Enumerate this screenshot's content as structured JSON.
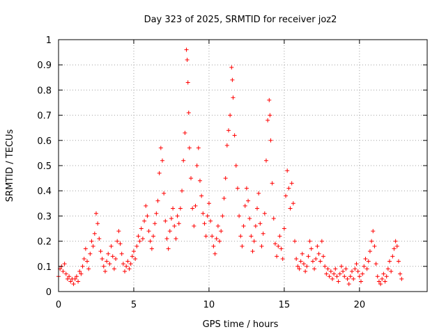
{
  "chart_data": {
    "type": "scatter",
    "title": "Day 323 of 2025, SRMTID for receiver joz2",
    "xlabel": "GPS time / hours",
    "ylabel": "SRMTID / TECUs",
    "xlim": [
      0,
      24.5
    ],
    "ylim": [
      0,
      1
    ],
    "xticks": [
      0,
      5,
      10,
      15,
      20
    ],
    "xtick_labels": [
      "0",
      "5",
      "10",
      "15",
      "20"
    ],
    "yticks": [
      0,
      0.1,
      0.2,
      0.3,
      0.4,
      0.5,
      0.6,
      0.7,
      0.8,
      0.9,
      1
    ],
    "ytick_labels": [
      "0",
      "0.1",
      "0.2",
      "0.3",
      "0.4",
      "0.5",
      "0.6",
      "0.7",
      "0.8",
      "0.9",
      "1"
    ],
    "grid": true,
    "marker": "+",
    "marker_color": "#ff0000",
    "series": [
      {
        "name": "SRMTID",
        "points": [
          [
            0.0,
            0.06
          ],
          [
            0.1,
            0.09
          ],
          [
            0.2,
            0.1
          ],
          [
            0.3,
            0.08
          ],
          [
            0.4,
            0.11
          ],
          [
            0.5,
            0.07
          ],
          [
            0.6,
            0.05
          ],
          [
            0.7,
            0.06
          ],
          [
            0.8,
            0.04
          ],
          [
            0.9,
            0.05
          ],
          [
            1.0,
            0.03
          ],
          [
            1.1,
            0.05
          ],
          [
            1.2,
            0.06
          ],
          [
            1.3,
            0.04
          ],
          [
            1.4,
            0.08
          ],
          [
            1.5,
            0.07
          ],
          [
            1.6,
            0.1
          ],
          [
            1.7,
            0.13
          ],
          [
            1.8,
            0.17
          ],
          [
            1.9,
            0.12
          ],
          [
            2.0,
            0.09
          ],
          [
            2.1,
            0.15
          ],
          [
            2.2,
            0.2
          ],
          [
            2.3,
            0.18
          ],
          [
            2.4,
            0.23
          ],
          [
            2.5,
            0.31
          ],
          [
            2.6,
            0.27
          ],
          [
            2.7,
            0.21
          ],
          [
            2.8,
            0.16
          ],
          [
            2.9,
            0.13
          ],
          [
            3.0,
            0.1
          ],
          [
            3.1,
            0.08
          ],
          [
            3.2,
            0.12
          ],
          [
            3.3,
            0.15
          ],
          [
            3.4,
            0.11
          ],
          [
            3.5,
            0.18
          ],
          [
            3.6,
            0.14
          ],
          [
            3.7,
            0.09
          ],
          [
            3.8,
            0.13
          ],
          [
            3.9,
            0.2
          ],
          [
            4.0,
            0.24
          ],
          [
            4.1,
            0.19
          ],
          [
            4.2,
            0.15
          ],
          [
            4.3,
            0.11
          ],
          [
            4.4,
            0.08
          ],
          [
            4.5,
            0.1
          ],
          [
            4.6,
            0.12
          ],
          [
            4.7,
            0.09
          ],
          [
            4.8,
            0.11
          ],
          [
            4.9,
            0.14
          ],
          [
            5.0,
            0.16
          ],
          [
            5.1,
            0.13
          ],
          [
            5.2,
            0.18
          ],
          [
            5.3,
            0.22
          ],
          [
            5.4,
            0.2
          ],
          [
            5.5,
            0.25
          ],
          [
            5.6,
            0.21
          ],
          [
            5.7,
            0.28
          ],
          [
            5.8,
            0.34
          ],
          [
            5.9,
            0.3
          ],
          [
            6.0,
            0.24
          ],
          [
            6.1,
            0.2
          ],
          [
            6.2,
            0.17
          ],
          [
            6.3,
            0.22
          ],
          [
            6.4,
            0.27
          ],
          [
            6.5,
            0.31
          ],
          [
            6.6,
            0.36
          ],
          [
            6.7,
            0.47
          ],
          [
            6.8,
            0.57
          ],
          [
            6.9,
            0.52
          ],
          [
            7.0,
            0.39
          ],
          [
            7.1,
            0.28
          ],
          [
            7.2,
            0.21
          ],
          [
            7.3,
            0.17
          ],
          [
            7.4,
            0.24
          ],
          [
            7.5,
            0.29
          ],
          [
            7.6,
            0.33
          ],
          [
            7.7,
            0.26
          ],
          [
            7.8,
            0.21
          ],
          [
            7.9,
            0.3
          ],
          [
            8.0,
            0.27
          ],
          [
            8.1,
            0.33
          ],
          [
            8.2,
            0.4
          ],
          [
            8.3,
            0.52
          ],
          [
            8.4,
            0.63
          ],
          [
            8.5,
            0.96
          ],
          [
            8.55,
            0.92
          ],
          [
            8.6,
            0.83
          ],
          [
            8.65,
            0.71
          ],
          [
            8.7,
            0.57
          ],
          [
            8.8,
            0.45
          ],
          [
            8.9,
            0.33
          ],
          [
            9.0,
            0.26
          ],
          [
            9.1,
            0.34
          ],
          [
            9.2,
            0.5
          ],
          [
            9.3,
            0.57
          ],
          [
            9.4,
            0.44
          ],
          [
            9.5,
            0.38
          ],
          [
            9.6,
            0.31
          ],
          [
            9.7,
            0.27
          ],
          [
            9.8,
            0.22
          ],
          [
            9.9,
            0.3
          ],
          [
            10.0,
            0.35
          ],
          [
            10.1,
            0.28
          ],
          [
            10.2,
            0.22
          ],
          [
            10.3,
            0.18
          ],
          [
            10.4,
            0.15
          ],
          [
            10.5,
            0.21
          ],
          [
            10.6,
            0.26
          ],
          [
            10.7,
            0.2
          ],
          [
            10.8,
            0.24
          ],
          [
            10.9,
            0.3
          ],
          [
            11.0,
            0.37
          ],
          [
            11.1,
            0.45
          ],
          [
            11.2,
            0.58
          ],
          [
            11.3,
            0.64
          ],
          [
            11.4,
            0.7
          ],
          [
            11.5,
            0.89
          ],
          [
            11.55,
            0.84
          ],
          [
            11.6,
            0.77
          ],
          [
            11.7,
            0.62
          ],
          [
            11.8,
            0.5
          ],
          [
            11.9,
            0.41
          ],
          [
            12.0,
            0.3
          ],
          [
            12.1,
            0.22
          ],
          [
            12.2,
            0.18
          ],
          [
            12.3,
            0.26
          ],
          [
            12.4,
            0.34
          ],
          [
            12.5,
            0.41
          ],
          [
            12.6,
            0.36
          ],
          [
            12.7,
            0.29
          ],
          [
            12.8,
            0.22
          ],
          [
            12.9,
            0.16
          ],
          [
            13.0,
            0.2
          ],
          [
            13.1,
            0.26
          ],
          [
            13.2,
            0.33
          ],
          [
            13.3,
            0.39
          ],
          [
            13.4,
            0.27
          ],
          [
            13.5,
            0.18
          ],
          [
            13.6,
            0.23
          ],
          [
            13.7,
            0.31
          ],
          [
            13.8,
            0.52
          ],
          [
            13.9,
            0.68
          ],
          [
            14.0,
            0.76
          ],
          [
            14.05,
            0.7
          ],
          [
            14.1,
            0.6
          ],
          [
            14.2,
            0.43
          ],
          [
            14.3,
            0.29
          ],
          [
            14.4,
            0.19
          ],
          [
            14.5,
            0.14
          ],
          [
            14.6,
            0.18
          ],
          [
            14.7,
            0.22
          ],
          [
            14.8,
            0.17
          ],
          [
            14.9,
            0.13
          ],
          [
            15.0,
            0.25
          ],
          [
            15.1,
            0.38
          ],
          [
            15.2,
            0.48
          ],
          [
            15.3,
            0.41
          ],
          [
            15.4,
            0.33
          ],
          [
            15.5,
            0.43
          ],
          [
            15.6,
            0.35
          ],
          [
            15.7,
            0.2
          ],
          [
            15.8,
            0.13
          ],
          [
            15.9,
            0.1
          ],
          [
            16.0,
            0.09
          ],
          [
            16.1,
            0.12
          ],
          [
            16.2,
            0.15
          ],
          [
            16.3,
            0.11
          ],
          [
            16.4,
            0.08
          ],
          [
            16.5,
            0.1
          ],
          [
            16.6,
            0.14
          ],
          [
            16.7,
            0.2
          ],
          [
            16.8,
            0.17
          ],
          [
            16.9,
            0.12
          ],
          [
            17.0,
            0.09
          ],
          [
            17.1,
            0.13
          ],
          [
            17.2,
            0.18
          ],
          [
            17.3,
            0.15
          ],
          [
            17.4,
            0.12
          ],
          [
            17.5,
            0.2
          ],
          [
            17.6,
            0.14
          ],
          [
            17.7,
            0.1
          ],
          [
            17.8,
            0.07
          ],
          [
            17.9,
            0.09
          ],
          [
            18.0,
            0.06
          ],
          [
            18.1,
            0.08
          ],
          [
            18.2,
            0.05
          ],
          [
            18.3,
            0.07
          ],
          [
            18.4,
            0.09
          ],
          [
            18.5,
            0.06
          ],
          [
            18.6,
            0.04
          ],
          [
            18.7,
            0.07
          ],
          [
            18.8,
            0.1
          ],
          [
            18.9,
            0.08
          ],
          [
            19.0,
            0.06
          ],
          [
            19.1,
            0.09
          ],
          [
            19.2,
            0.05
          ],
          [
            19.3,
            0.03
          ],
          [
            19.4,
            0.06
          ],
          [
            19.5,
            0.08
          ],
          [
            19.6,
            0.05
          ],
          [
            19.7,
            0.09
          ],
          [
            19.8,
            0.11
          ],
          [
            19.9,
            0.08
          ],
          [
            20.0,
            0.06
          ],
          [
            20.1,
            0.04
          ],
          [
            20.2,
            0.07
          ],
          [
            20.3,
            0.1
          ],
          [
            20.4,
            0.13
          ],
          [
            20.5,
            0.09
          ],
          [
            20.6,
            0.12
          ],
          [
            20.7,
            0.16
          ],
          [
            20.8,
            0.2
          ],
          [
            20.9,
            0.24
          ],
          [
            21.0,
            0.18
          ],
          [
            21.1,
            0.11
          ],
          [
            21.2,
            0.06
          ],
          [
            21.3,
            0.04
          ],
          [
            21.4,
            0.03
          ],
          [
            21.5,
            0.05
          ],
          [
            21.6,
            0.07
          ],
          [
            21.7,
            0.04
          ],
          [
            21.8,
            0.06
          ],
          [
            21.9,
            0.09
          ],
          [
            22.0,
            0.12
          ],
          [
            22.1,
            0.08
          ],
          [
            22.2,
            0.14
          ],
          [
            22.3,
            0.17
          ],
          [
            22.4,
            0.2
          ],
          [
            22.5,
            0.18
          ],
          [
            22.6,
            0.12
          ],
          [
            22.7,
            0.07
          ],
          [
            22.8,
            0.05
          ]
        ]
      }
    ]
  }
}
